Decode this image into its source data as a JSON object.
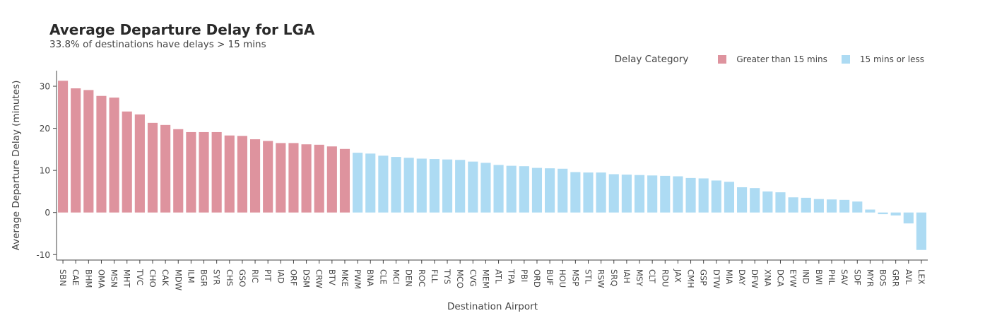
{
  "chart_data": {
    "type": "bar",
    "title": "Average Departure Delay for LGA",
    "subtitle": "33.8% of destinations have delays > 15 mins",
    "xlabel": "Destination Airport",
    "ylabel": "Average Departure Delay (minutes)",
    "ylim": [
      -11.3,
      33.7
    ],
    "yticks": [
      -10,
      0,
      10,
      20,
      30
    ],
    "grid": false,
    "legend": {
      "title": "Delay Category",
      "position": "top-right",
      "entries": [
        {
          "name": "Greater than 15 mins",
          "color": "#de939e"
        },
        {
          "name": "15 mins or less",
          "color": "#addbf3"
        }
      ]
    },
    "threshold": 15,
    "categories": [
      "SBN",
      "CAE",
      "BHM",
      "OMA",
      "MSN",
      "MHT",
      "TVC",
      "CHO",
      "CAK",
      "MDW",
      "ILM",
      "BGR",
      "SYR",
      "CHS",
      "GSO",
      "RIC",
      "PIT",
      "IAD",
      "ORF",
      "DSM",
      "CRW",
      "BTV",
      "MKE",
      "PWM",
      "BNA",
      "CLE",
      "MCI",
      "DEN",
      "ROC",
      "FLL",
      "TYS",
      "MCO",
      "CVG",
      "MEM",
      "ATL",
      "TPA",
      "PBI",
      "ORD",
      "BUF",
      "HOU",
      "MSP",
      "STL",
      "RSW",
      "SRQ",
      "IAH",
      "MSY",
      "CLT",
      "RDU",
      "JAX",
      "CMH",
      "GSP",
      "DTW",
      "MIA",
      "DAY",
      "DFW",
      "XNA",
      "DCA",
      "EYW",
      "IND",
      "BWI",
      "PHL",
      "SAV",
      "SDF",
      "MYR",
      "BOS",
      "GRR",
      "AVL",
      "LEX"
    ],
    "values": [
      31.3,
      29.5,
      29.1,
      27.7,
      27.3,
      24.0,
      23.3,
      21.3,
      20.8,
      19.8,
      19.1,
      19.1,
      19.1,
      18.3,
      18.2,
      17.4,
      17.0,
      16.5,
      16.5,
      16.2,
      16.1,
      15.7,
      15.1,
      14.2,
      14.0,
      13.5,
      13.2,
      13.0,
      12.8,
      12.7,
      12.6,
      12.5,
      12.1,
      11.8,
      11.3,
      11.1,
      11.0,
      10.6,
      10.5,
      10.4,
      9.6,
      9.5,
      9.5,
      9.1,
      9.0,
      8.9,
      8.8,
      8.7,
      8.6,
      8.2,
      8.1,
      7.6,
      7.3,
      6.0,
      5.8,
      5.0,
      4.8,
      3.6,
      3.5,
      3.2,
      3.1,
      3.0,
      2.6,
      0.7,
      -0.4,
      -0.7,
      -2.6,
      -8.9
    ]
  }
}
